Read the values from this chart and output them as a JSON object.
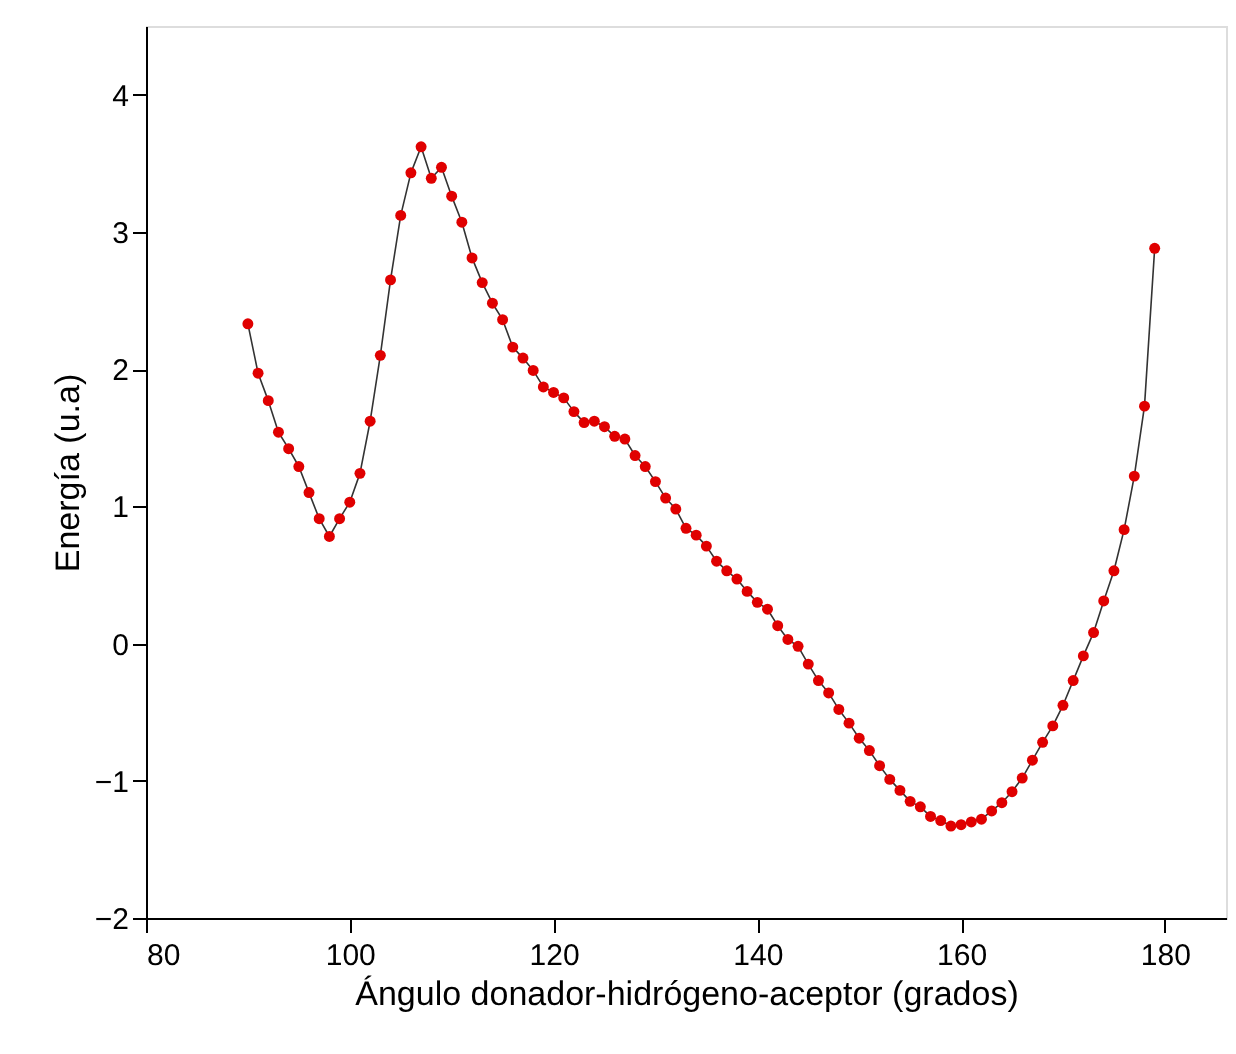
{
  "chart_data": {
    "type": "line",
    "xlabel": "Ángulo donador-hidrógeno-aceptor (grados)",
    "ylabel": "Energía (u.a)",
    "x": [
      90,
      91,
      92,
      93,
      94,
      95,
      96,
      97,
      98,
      99,
      100,
      101,
      102,
      103,
      104,
      105,
      106,
      107,
      108,
      109,
      110,
      111,
      112,
      113,
      114,
      115,
      116,
      117,
      118,
      119,
      120,
      121,
      122,
      123,
      124,
      125,
      126,
      127,
      128,
      129,
      130,
      131,
      132,
      133,
      134,
      135,
      136,
      137,
      138,
      139,
      140,
      141,
      142,
      143,
      144,
      145,
      146,
      147,
      148,
      149,
      150,
      151,
      152,
      153,
      154,
      155,
      156,
      157,
      158,
      159,
      160,
      161,
      162,
      163,
      164,
      165,
      166,
      167,
      168,
      169,
      170,
      171,
      172,
      173,
      174,
      175,
      176,
      177,
      178,
      179
    ],
    "series": [
      {
        "color": "#e00000",
        "values": [
          2.33,
          1.97,
          1.77,
          1.54,
          1.42,
          1.29,
          1.1,
          0.91,
          0.78,
          0.91,
          1.03,
          1.24,
          1.62,
          2.1,
          2.65,
          3.12,
          3.43,
          3.62,
          3.39,
          3.47,
          3.26,
          3.07,
          2.81,
          2.63,
          2.48,
          2.36,
          2.16,
          2.08,
          1.99,
          1.87,
          1.83,
          1.79,
          1.69,
          1.61,
          1.62,
          1.58,
          1.51,
          1.49,
          1.37,
          1.29,
          1.18,
          1.06,
          0.98,
          0.84,
          0.79,
          0.71,
          0.6,
          0.53,
          0.47,
          0.38,
          0.3,
          0.25,
          0.13,
          0.03,
          -0.02,
          -0.15,
          -0.27,
          -0.36,
          -0.48,
          -0.58,
          -0.69,
          -0.78,
          -0.89,
          -0.99,
          -1.07,
          -1.15,
          -1.19,
          -1.26,
          -1.29,
          -1.33,
          -1.32,
          -1.3,
          -1.28,
          -1.22,
          -1.16,
          -1.08,
          -0.98,
          -0.85,
          -0.72,
          -0.6,
          -0.45,
          -0.27,
          -0.09,
          0.08,
          0.31,
          0.53,
          0.83,
          1.22,
          1.73,
          2.88
        ]
      }
    ],
    "marker": "circle",
    "line_style": "solid",
    "grid": false,
    "xlim": [
      80,
      186
    ],
    "xticks": [
      80,
      100,
      120,
      140,
      160,
      180
    ],
    "ylim": [
      -2,
      4.5
    ],
    "yticks": [
      -2,
      -1,
      0,
      1,
      2,
      3,
      4
    ]
  }
}
